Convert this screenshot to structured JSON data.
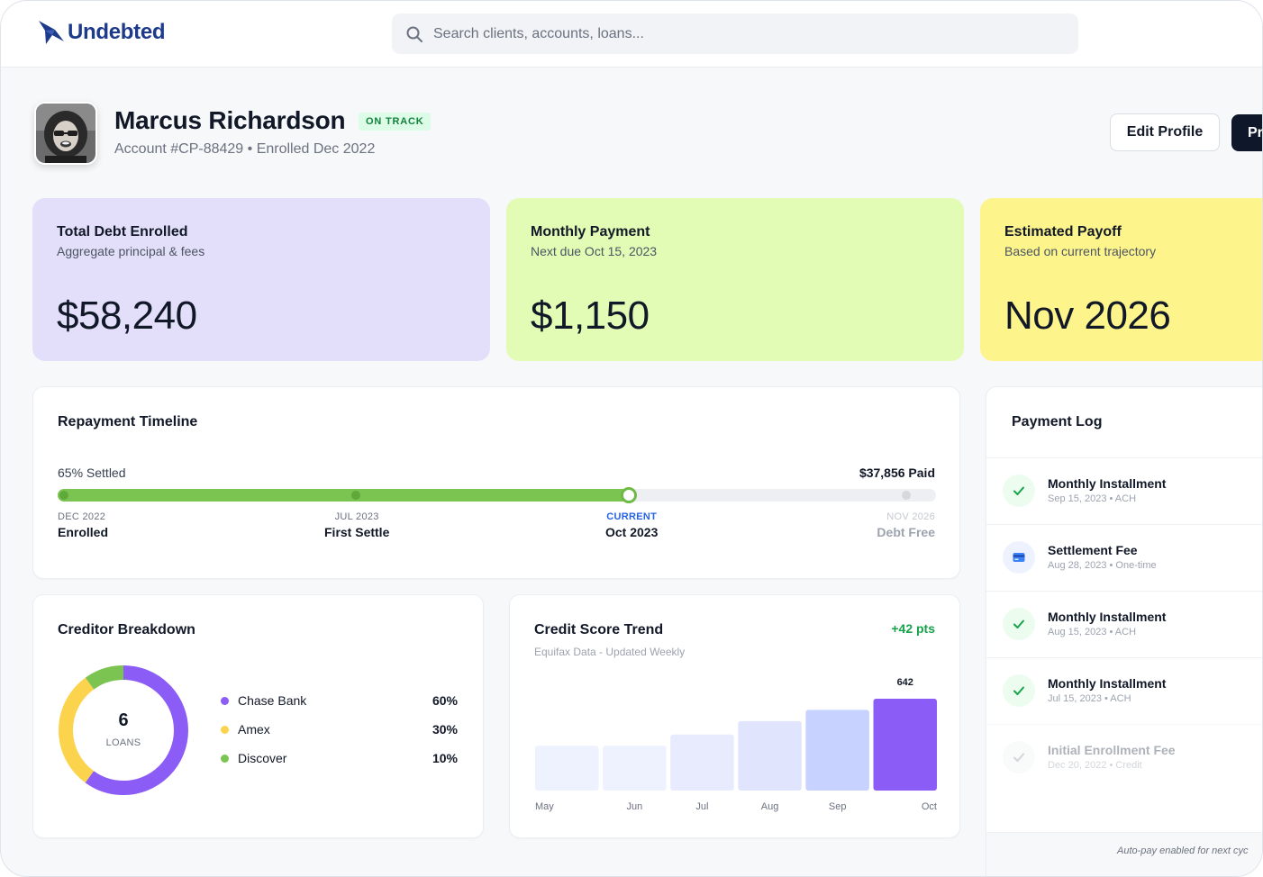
{
  "app": {
    "brand": "Undebted",
    "accent": "#1e3a8a"
  },
  "search": {
    "placeholder": "Search clients, accounts, loans..."
  },
  "profile": {
    "name": "Marcus Richardson",
    "status": "ON TRACK",
    "account_line": "Account #CP-88429 • Enrolled Dec 2022",
    "edit_label": "Edit Profile",
    "primary_label": "Pr"
  },
  "kpis": [
    {
      "title": "Total Debt Enrolled",
      "subtitle": "Aggregate principal & fees",
      "value": "$58,240",
      "color": "#e3dffa"
    },
    {
      "title": "Monthly Payment",
      "subtitle": "Next due Oct 15, 2023",
      "value": "$1,150",
      "color": "#e2fbb5"
    },
    {
      "title": "Estimated Payoff",
      "subtitle": "Based on current trajectory",
      "value": "Nov 2026",
      "color": "#fef48c"
    }
  ],
  "timeline": {
    "title": "Repayment Timeline",
    "settled_label": "65% Settled",
    "paid_label": "$37,856 Paid",
    "progress_pct": 65,
    "milestones": [
      {
        "date": "DEC 2022",
        "name": "Enrolled"
      },
      {
        "date": "JUL 2023",
        "name": "First Settle"
      },
      {
        "date": "CURRENT",
        "name": "Oct 2023"
      },
      {
        "date": "NOV 2026",
        "name": "Debt Free"
      }
    ]
  },
  "creditors": {
    "title": "Creditor Breakdown",
    "count": "6",
    "count_label": "LOANS",
    "items": [
      {
        "name": "Chase Bank",
        "pct": "60%",
        "value": 60,
        "color": "#8b5cf6"
      },
      {
        "name": "Amex",
        "pct": "30%",
        "value": 30,
        "color": "#fcd34d"
      },
      {
        "name": "Discover",
        "pct": "10%",
        "value": 10,
        "color": "#7cc452"
      }
    ]
  },
  "credit": {
    "title": "Credit Score Trend",
    "subtitle": "Equifax Data - Updated Weekly",
    "delta": "+42 pts"
  },
  "chart_data": {
    "type": "bar",
    "title": "Credit Score Trend",
    "categories": [
      "May",
      "Jun",
      "Jul",
      "Aug",
      "Sep",
      "Oct"
    ],
    "values": [
      600,
      600,
      610,
      622,
      632,
      642
    ],
    "data_labels": [
      "",
      "",
      "",
      "",
      "",
      "642"
    ],
    "ylim": [
      560,
      650
    ],
    "bar_colors": [
      "#eef1fe",
      "#eef1fe",
      "#e8ebfd",
      "#e0e5fd",
      "#c7d2fe",
      "#8b5cf6"
    ]
  },
  "payment_log": {
    "title": "Payment Log",
    "footer": "Auto-pay enabled for next cyc",
    "entries": [
      {
        "title": "Monthly Installment",
        "meta": "Sep 15, 2023 • ACH",
        "icon": "check-icon"
      },
      {
        "title": "Settlement Fee",
        "meta": "Aug 28, 2023 • One-time",
        "icon": "card-icon"
      },
      {
        "title": "Monthly Installment",
        "meta": "Aug 15, 2023 • ACH",
        "icon": "check-icon"
      },
      {
        "title": "Monthly Installment",
        "meta": "Jul 15, 2023 • ACH",
        "icon": "check-icon"
      },
      {
        "title": "Initial Enrollment Fee",
        "meta": "Dec 20, 2022 • Credit",
        "icon": "check-icon"
      }
    ]
  }
}
